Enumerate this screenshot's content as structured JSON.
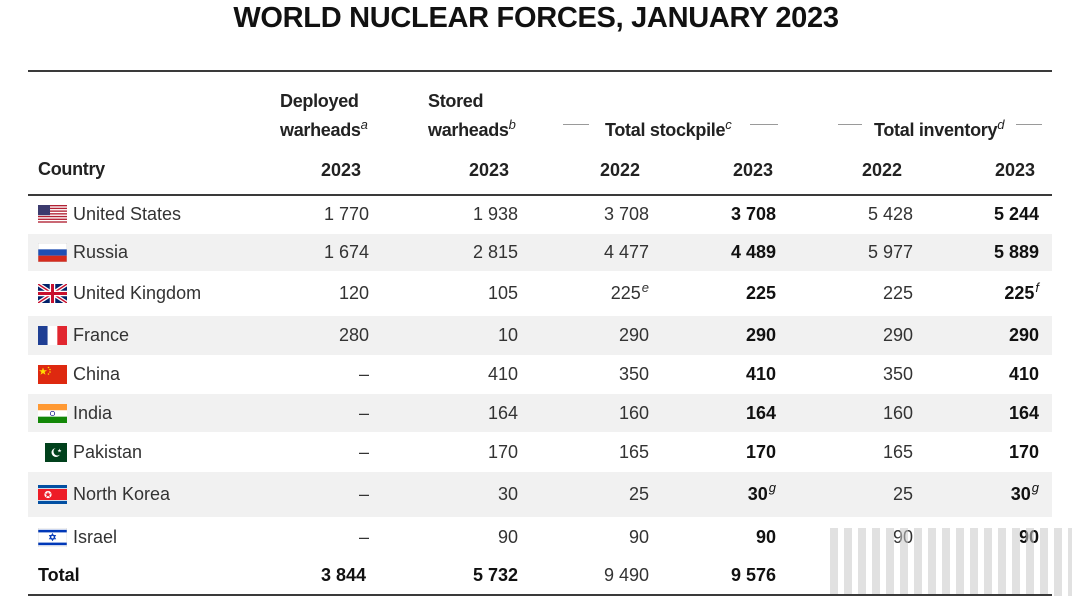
{
  "title": "WORLD NUCLEAR FORCES, JANUARY 2023",
  "headers": {
    "country": "Country",
    "deployed": "Deployed",
    "deployed2": "warheads",
    "deployed_note": "a",
    "stored": "Stored",
    "stored2": "warheads",
    "stored_note": "b",
    "stockpile": "Total stockpile",
    "stockpile_note": "c",
    "inventory": "Total inventory",
    "inventory_note": "d",
    "years": [
      "2023",
      "2023",
      "2022",
      "2023",
      "2022",
      "2023"
    ]
  },
  "rows": [
    {
      "country": "United States",
      "flag": "us-flag",
      "deployed": "1 770",
      "stored": "1 938",
      "stock2022": "3 708",
      "stock2023": "3 708",
      "inv2022": "5 428",
      "inv2023": "5 244",
      "notes": {}
    },
    {
      "country": "Russia",
      "flag": "russia-flag",
      "deployed": "1 674",
      "stored": "2 815",
      "stock2022": "4 477",
      "stock2023": "4 489",
      "inv2022": "5 977",
      "inv2023": "5 889",
      "notes": {}
    },
    {
      "country": "United Kingdom",
      "flag": "uk-flag",
      "deployed": "120",
      "stored": "105",
      "stock2022": "225",
      "stock2023": "225",
      "inv2022": "225",
      "inv2023": "225",
      "notes": {
        "stock2022": "e",
        "inv2023": "f"
      }
    },
    {
      "country": "France",
      "flag": "france-flag",
      "deployed": "280",
      "stored": "10",
      "stock2022": "290",
      "stock2023": "290",
      "inv2022": "290",
      "inv2023": "290",
      "notes": {}
    },
    {
      "country": "China",
      "flag": "china-flag",
      "deployed": "–",
      "stored": "410",
      "stock2022": "350",
      "stock2023": "410",
      "inv2022": "350",
      "inv2023": "410",
      "notes": {}
    },
    {
      "country": "India",
      "flag": "india-flag",
      "deployed": "–",
      "stored": "164",
      "stock2022": "160",
      "stock2023": "164",
      "inv2022": "160",
      "inv2023": "164",
      "notes": {}
    },
    {
      "country": "Pakistan",
      "flag": "pakistan-flag",
      "deployed": "–",
      "stored": "170",
      "stock2022": "165",
      "stock2023": "170",
      "inv2022": "165",
      "inv2023": "170",
      "notes": {}
    },
    {
      "country": "North Korea",
      "flag": "north-korea-flag",
      "deployed": "–",
      "stored": "30",
      "stock2022": "25",
      "stock2023": "30",
      "inv2022": "25",
      "inv2023": "30",
      "notes": {
        "stock2023": "g",
        "inv2023": "g"
      }
    },
    {
      "country": "Israel",
      "flag": "israel-flag",
      "deployed": "–",
      "stored": "90",
      "stock2022": "90",
      "stock2023": "90",
      "inv2022": "90",
      "inv2023": "90",
      "notes": {}
    }
  ],
  "total": {
    "label": "Total",
    "deployed": "3 844",
    "stored": "5 732",
    "stock2022": "9 490",
    "stock2023": "9 576"
  }
}
